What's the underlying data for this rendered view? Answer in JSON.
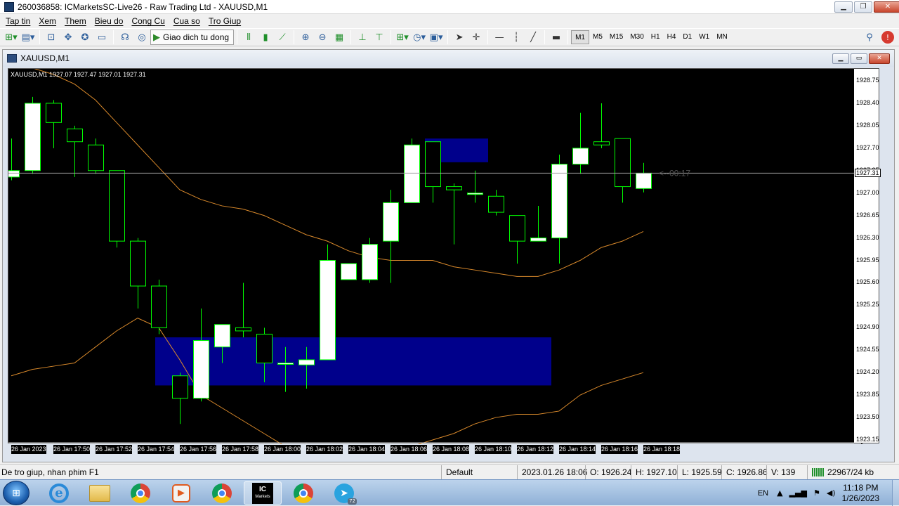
{
  "window": {
    "title": "260036858: ICMarketsSC-Live26 - Raw Trading Ltd - XAUUSD,M1",
    "buttons": [
      "minimize",
      "restore",
      "close"
    ]
  },
  "menu": [
    "Tap tin",
    "Xem",
    "Them",
    "Bieu do",
    "Cong Cu",
    "Cua so",
    "Tro Giup"
  ],
  "toolbar": {
    "autotrade_label": "Giao dich tu dong",
    "timeframes": [
      "M1",
      "M5",
      "M15",
      "M30",
      "H1",
      "H4",
      "D1",
      "W1",
      "MN"
    ],
    "active_timeframe": "M1",
    "icons": [
      "new-chart-icon",
      "profiles-icon",
      "market-watch-icon",
      "data-window-icon",
      "navigator-icon",
      "terminal-icon",
      "strategy-tester-icon",
      "new-order-icon",
      "meta-editor-icon",
      "bar-chart-icon",
      "candlestick-icon",
      "line-chart-icon",
      "zoom-in-icon",
      "zoom-out-icon",
      "tile-windows-icon",
      "autoscroll-icon",
      "chart-shift-icon",
      "indicators-icon",
      "periods-icon",
      "templates-icon",
      "cursor-icon",
      "crosshair-icon",
      "horizontal-line-icon",
      "vertical-line-icon",
      "trendline-icon",
      "rectangle-icon",
      "search-icon",
      "notifications-icon"
    ]
  },
  "chart_window": {
    "title": "XAUUSD,M1"
  },
  "chart_data": {
    "type": "candlestick",
    "symbol_line": "XAUUSD,M1  1927.07 1927.47 1927.01 1927.31",
    "ylim": [
      1923.0,
      1928.95
    ],
    "y_ticks": [
      "1928.75",
      "1928.40",
      "1928.05",
      "1927.70",
      "1927.35",
      "1927.00",
      "1926.65",
      "1926.30",
      "1925.95",
      "1925.60",
      "1925.25",
      "1924.90",
      "1924.55",
      "1924.20",
      "1923.85",
      "1923.50",
      "1923.15"
    ],
    "current_price": "1927.31",
    "countdown": "<--00:17",
    "x_labels": [
      "26 Jan 2023",
      "26 Jan 17:50",
      "26 Jan 17:52",
      "26 Jan 17:54",
      "26 Jan 17:56",
      "26 Jan 17:58",
      "26 Jan 18:00",
      "26 Jan 18:02",
      "26 Jan 18:04",
      "26 Jan 18:06",
      "26 Jan 18:08",
      "26 Jan 18:10",
      "26 Jan 18:12",
      "26 Jan 18:14",
      "26 Jan 18:16",
      "26 Jan 18:18"
    ],
    "bull_color": "#ffffff",
    "bear_color": "#000000",
    "wick_color": "#00ff00",
    "band_color": "#d9892b",
    "zone_color": "#00008b",
    "candles": [
      {
        "o": 1927.25,
        "h": 1927.85,
        "l": 1927.2,
        "c": 1927.35
      },
      {
        "o": 1927.35,
        "h": 1928.5,
        "l": 1927.3,
        "c": 1928.4
      },
      {
        "o": 1928.4,
        "h": 1928.45,
        "l": 1927.7,
        "c": 1928.1
      },
      {
        "o": 1928.0,
        "h": 1928.05,
        "l": 1927.25,
        "c": 1927.8
      },
      {
        "o": 1927.75,
        "h": 1927.85,
        "l": 1927.3,
        "c": 1927.35
      },
      {
        "o": 1927.35,
        "h": 1927.35,
        "l": 1926.15,
        "c": 1926.25
      },
      {
        "o": 1926.25,
        "h": 1926.3,
        "l": 1925.2,
        "c": 1925.55
      },
      {
        "o": 1925.55,
        "h": 1925.65,
        "l": 1924.8,
        "c": 1924.9
      },
      {
        "o": 1924.15,
        "h": 1924.2,
        "l": 1923.4,
        "c": 1923.8
      },
      {
        "o": 1923.8,
        "h": 1925.2,
        "l": 1923.75,
        "c": 1924.7
      },
      {
        "o": 1924.6,
        "h": 1924.95,
        "l": 1924.35,
        "c": 1924.95
      },
      {
        "o": 1924.9,
        "h": 1925.6,
        "l": 1924.75,
        "c": 1924.85
      },
      {
        "o": 1924.8,
        "h": 1924.9,
        "l": 1924.05,
        "c": 1924.35
      },
      {
        "o": 1924.35,
        "h": 1924.6,
        "l": 1923.9,
        "c": 1924.35
      },
      {
        "o": 1924.32,
        "h": 1924.6,
        "l": 1923.95,
        "c": 1924.4
      },
      {
        "o": 1924.4,
        "h": 1926.2,
        "l": 1924.4,
        "c": 1925.95
      },
      {
        "o": 1925.65,
        "h": 1925.9,
        "l": 1925.65,
        "c": 1925.9
      },
      {
        "o": 1925.65,
        "h": 1926.3,
        "l": 1925.6,
        "c": 1926.2
      },
      {
        "o": 1926.25,
        "h": 1927.05,
        "l": 1925.6,
        "c": 1926.85
      },
      {
        "o": 1926.85,
        "h": 1927.85,
        "l": 1926.85,
        "c": 1927.75
      },
      {
        "o": 1927.8,
        "h": 1927.8,
        "l": 1926.85,
        "c": 1927.1
      },
      {
        "o": 1927.1,
        "h": 1927.15,
        "l": 1926.2,
        "c": 1927.05
      },
      {
        "o": 1927.0,
        "h": 1927.35,
        "l": 1926.85,
        "c": 1927.0
      },
      {
        "o": 1926.95,
        "h": 1927.05,
        "l": 1926.65,
        "c": 1926.7
      },
      {
        "o": 1926.65,
        "h": 1926.65,
        "l": 1925.9,
        "c": 1926.25
      },
      {
        "o": 1926.25,
        "h": 1926.8,
        "l": 1926.25,
        "c": 1926.3
      },
      {
        "o": 1926.3,
        "h": 1927.6,
        "l": 1925.9,
        "c": 1927.45
      },
      {
        "o": 1927.45,
        "h": 1928.25,
        "l": 1927.3,
        "c": 1927.7
      },
      {
        "o": 1927.8,
        "h": 1928.4,
        "l": 1927.7,
        "c": 1927.75
      },
      {
        "o": 1927.85,
        "h": 1927.85,
        "l": 1926.85,
        "c": 1927.1
      },
      {
        "o": 1927.07,
        "h": 1927.47,
        "l": 1927.01,
        "c": 1927.31
      }
    ],
    "upper_band": [
      1929.05,
      1928.95,
      1928.85,
      1928.7,
      1928.45,
      1928.1,
      1927.75,
      1927.4,
      1927.05,
      1926.9,
      1926.8,
      1926.75,
      1926.65,
      1926.5,
      1926.35,
      1926.25,
      1926.1,
      1926.0,
      1925.95,
      1925.95,
      1925.95,
      1925.85,
      1925.8,
      1925.75,
      1925.7,
      1925.7,
      1925.8,
      1925.95,
      1926.15,
      1926.25,
      1926.4
    ],
    "lower_band": [
      1924.15,
      1924.25,
      1924.3,
      1924.35,
      1924.6,
      1924.85,
      1925.05,
      1924.9,
      1924.4,
      1923.85,
      1923.65,
      1923.45,
      1923.25,
      1923.05,
      1922.8,
      1922.6,
      1922.55,
      1922.6,
      1922.85,
      1923.05,
      1923.15,
      1923.25,
      1923.4,
      1923.5,
      1923.55,
      1923.55,
      1923.6,
      1923.85,
      1924.0,
      1924.1,
      1924.2
    ],
    "zones": [
      {
        "from_index": 7.2,
        "to_index": 26.0,
        "top": 1924.75,
        "bottom": 1924.0
      },
      {
        "from_index": 20.0,
        "to_index": 23.0,
        "top": 1927.85,
        "bottom": 1927.48
      }
    ]
  },
  "status": {
    "help": "De tro giup, nhan phim F1",
    "profile": "Default",
    "datetime": "2023.01.26 18:06",
    "open": "O: 1926.24",
    "high": "H: 1927.10",
    "low": "L: 1925.59",
    "close": "C: 1926.86",
    "volume": "V: 139",
    "traffic": "22967/24 kb"
  },
  "taskbar": {
    "apps": [
      "start-button",
      "internet-explorer",
      "file-explorer",
      "chrome",
      "media-player",
      "chrome",
      "ic-markets-mt4",
      "chrome",
      "telegram"
    ],
    "ic_label": "IC",
    "ic_sub": "Markets",
    "telegram_badge": "72",
    "language": "EN",
    "time": "11:18 PM",
    "date": "1/26/2023"
  }
}
